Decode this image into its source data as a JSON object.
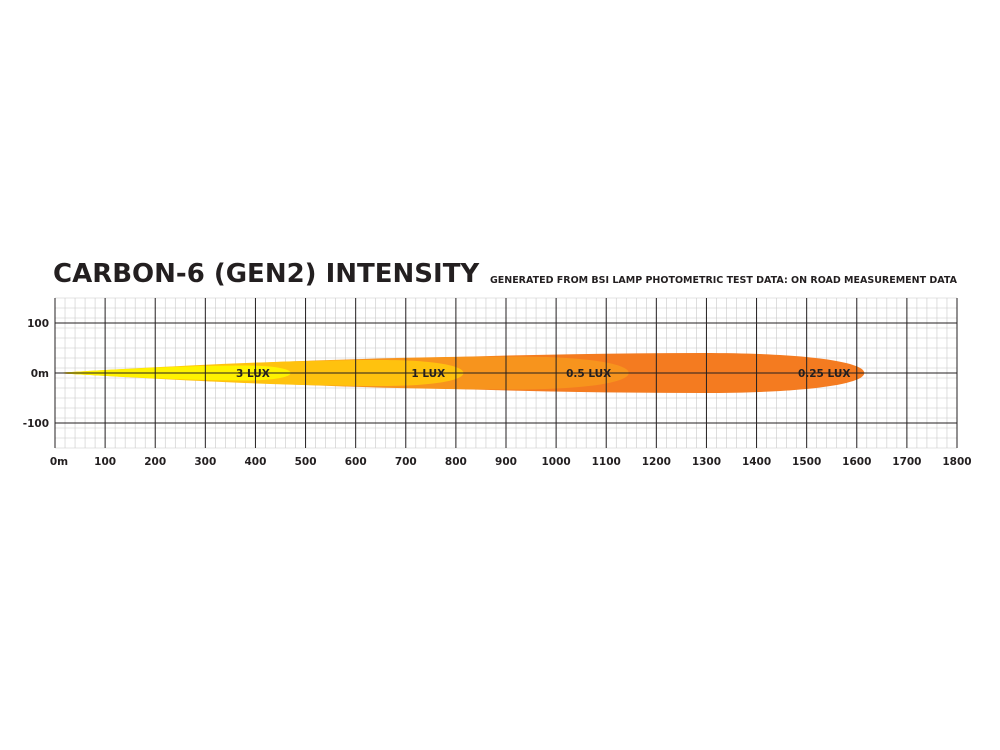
{
  "chart_data": {
    "type": "area",
    "title": "CARBON-6 (GEN2) INTENSITY",
    "subtitle": "GENERATED FROM BSI LAMP PHOTOMETRIC TEST DATA: ON ROAD MEASUREMENT DATA",
    "xlabel": "",
    "ylabel": "",
    "xlim": [
      0,
      1800
    ],
    "ylim": [
      -150,
      150
    ],
    "x_ticks": [
      {
        "value": 0,
        "label": "0m"
      },
      {
        "value": 100,
        "label": "100"
      },
      {
        "value": 200,
        "label": "200"
      },
      {
        "value": 300,
        "label": "300"
      },
      {
        "value": 400,
        "label": "400"
      },
      {
        "value": 500,
        "label": "500"
      },
      {
        "value": 600,
        "label": "600"
      },
      {
        "value": 700,
        "label": "700"
      },
      {
        "value": 800,
        "label": "800"
      },
      {
        "value": 900,
        "label": "900"
      },
      {
        "value": 1000,
        "label": "1000"
      },
      {
        "value": 1100,
        "label": "1100"
      },
      {
        "value": 1200,
        "label": "1200"
      },
      {
        "value": 1300,
        "label": "1300"
      },
      {
        "value": 1400,
        "label": "1400"
      },
      {
        "value": 1500,
        "label": "1500"
      },
      {
        "value": 1600,
        "label": "1600"
      },
      {
        "value": 1700,
        "label": "1700"
      },
      {
        "value": 1800,
        "label": "1800"
      }
    ],
    "y_ticks": [
      {
        "value": 100,
        "label": "100"
      },
      {
        "value": 0,
        "label": "0m"
      },
      {
        "value": -100,
        "label": "-100"
      }
    ],
    "grid": true,
    "series": [
      {
        "name": "0.25 LUX",
        "max_distance": 1615,
        "half_width": 40,
        "color": "#f47b20",
        "label_x": 1535
      },
      {
        "name": "0.5 LUX",
        "max_distance": 1145,
        "half_width": 33,
        "color": "#f7941d",
        "label_x": 1065
      },
      {
        "name": "1 LUX",
        "max_distance": 815,
        "half_width": 26,
        "color": "#ffc20e",
        "label_x": 745
      },
      {
        "name": "3 LUX",
        "max_distance": 470,
        "half_width": 15,
        "color": "#fff200",
        "label_x": 395
      }
    ]
  }
}
